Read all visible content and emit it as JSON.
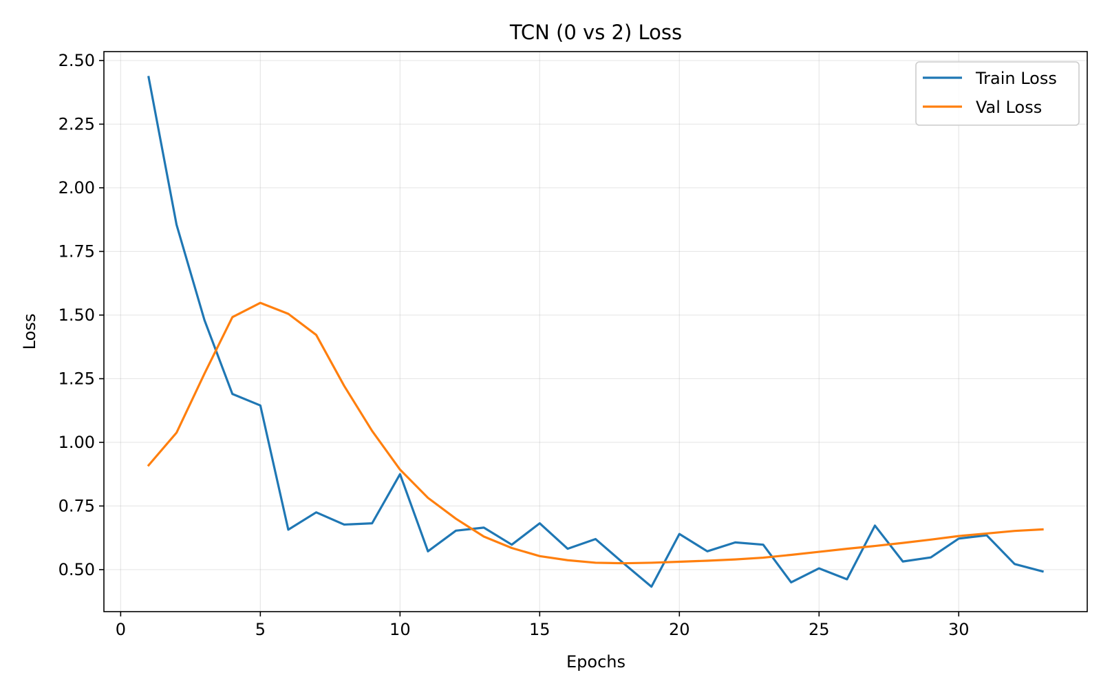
{
  "chart_data": {
    "type": "line",
    "title": "TCN (0 vs 2) Loss",
    "xlabel": "Epochs",
    "ylabel": "Loss",
    "xlim": [
      -0.6,
      34.6
    ],
    "ylim": [
      0.335,
      2.535
    ],
    "xticks": [
      0,
      5,
      10,
      15,
      20,
      25,
      30
    ],
    "xtick_labels": [
      "0",
      "5",
      "10",
      "15",
      "20",
      "25",
      "30"
    ],
    "yticks": [
      0.5,
      0.75,
      1.0,
      1.25,
      1.5,
      1.75,
      2.0,
      2.25,
      2.5
    ],
    "ytick_labels": [
      "0.50",
      "0.75",
      "1.00",
      "1.25",
      "1.50",
      "1.75",
      "2.00",
      "2.25",
      "2.50"
    ],
    "grid": true,
    "legend_position": "top-right",
    "x": [
      1,
      2,
      3,
      4,
      5,
      6,
      7,
      8,
      9,
      10,
      11,
      12,
      13,
      14,
      15,
      16,
      17,
      18,
      19,
      20,
      21,
      22,
      23,
      24,
      25,
      26,
      27,
      28,
      29,
      30,
      31,
      32,
      33
    ],
    "series": [
      {
        "name": "Train Loss",
        "color": "#1f77b4",
        "values": [
          2.435,
          1.855,
          1.48,
          1.19,
          1.145,
          0.657,
          0.725,
          0.677,
          0.682,
          0.875,
          0.572,
          0.653,
          0.665,
          0.598,
          0.682,
          0.582,
          0.62,
          0.525,
          0.433,
          0.64,
          0.572,
          0.607,
          0.598,
          0.45,
          0.505,
          0.462,
          0.673,
          0.532,
          0.548,
          0.622,
          0.635,
          0.522,
          0.493
        ]
      },
      {
        "name": "Val Loss",
        "color": "#ff7f0e",
        "values": [
          0.91,
          1.038,
          1.27,
          1.492,
          1.548,
          1.505,
          1.422,
          1.222,
          1.045,
          0.893,
          0.782,
          0.7,
          0.63,
          0.585,
          0.553,
          0.537,
          0.527,
          0.525,
          0.527,
          0.531,
          0.535,
          0.54,
          0.547,
          0.558,
          0.57,
          0.582,
          0.593,
          0.605,
          0.618,
          0.632,
          0.642,
          0.652,
          0.658
        ]
      }
    ]
  }
}
